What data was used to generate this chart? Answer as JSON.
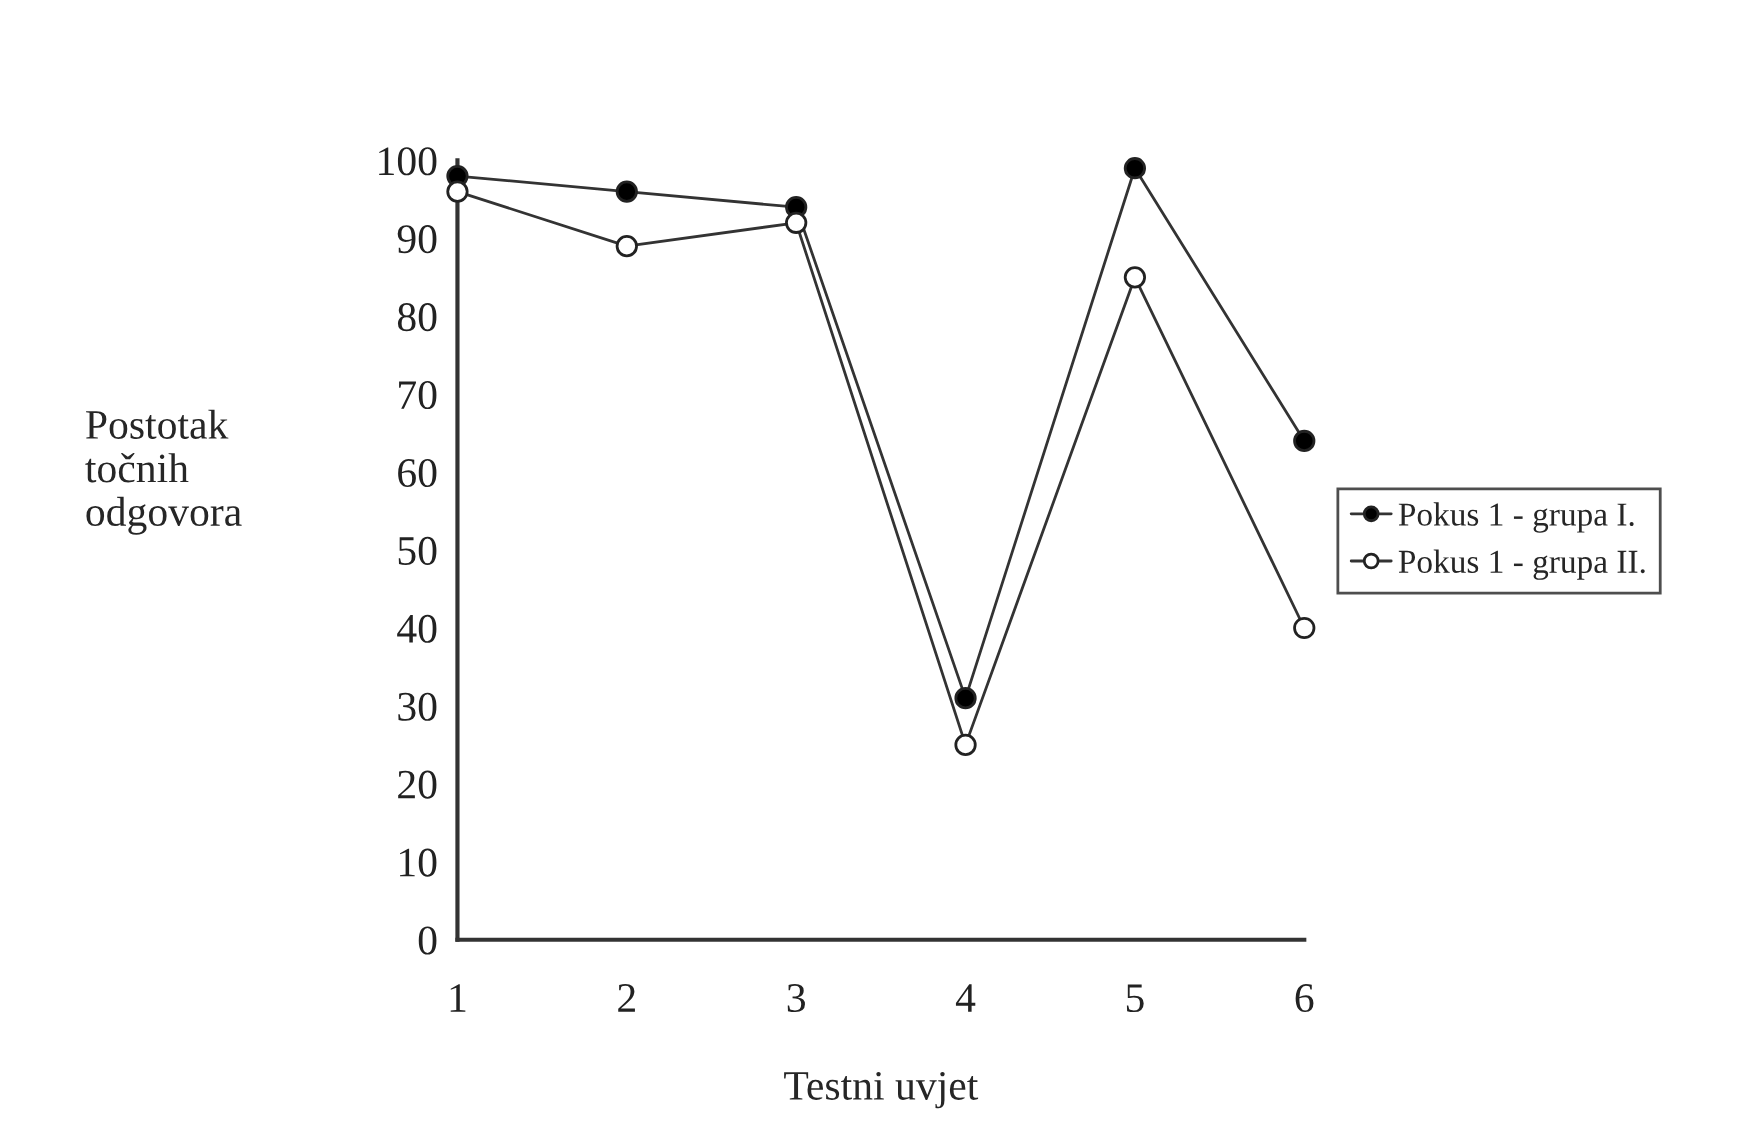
{
  "chart_data": {
    "type": "line",
    "xlabel": "Testni uvjet",
    "ylabel": "Postotak\ntočnih\nodgovora",
    "categories": [
      "1",
      "2",
      "3",
      "4",
      "5",
      "6"
    ],
    "series": [
      {
        "name": "Pokus 1 - grupa I.",
        "color": "#000000",
        "values": [
          98,
          96,
          94,
          31,
          99,
          64
        ]
      },
      {
        "name": "Pokus 1 - grupa II.",
        "color": "#ffffff",
        "values": [
          96,
          89,
          92,
          25,
          85,
          40
        ]
      }
    ],
    "ylim": [
      0,
      100
    ],
    "yticks": [
      0,
      10,
      20,
      30,
      40,
      50,
      60,
      70,
      80,
      90,
      100
    ],
    "grid": false,
    "legend": "right",
    "marker": "circle",
    "line_style": "solid"
  }
}
